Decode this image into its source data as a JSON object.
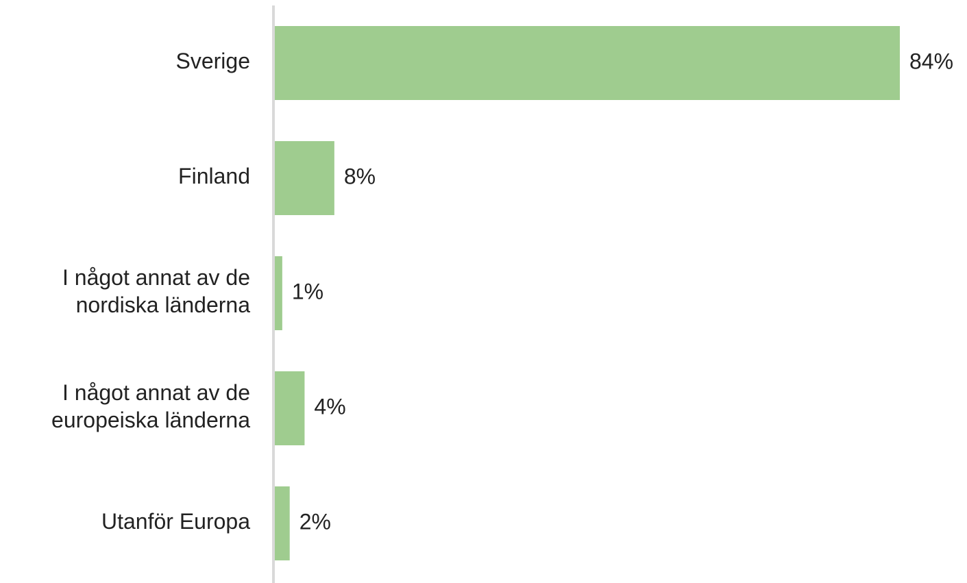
{
  "chart_data": {
    "type": "bar",
    "orientation": "horizontal",
    "categories": [
      "Sverige",
      "Finland",
      "I något annat av de\nnordiska länderna",
      "I något annat av de\neuropeiska länderna",
      "Utanför Europa"
    ],
    "values": [
      84,
      8,
      1,
      4,
      2
    ],
    "value_labels": [
      "84%",
      "8%",
      "1%",
      "4%",
      "2%"
    ],
    "color": "#9fcc8f"
  }
}
